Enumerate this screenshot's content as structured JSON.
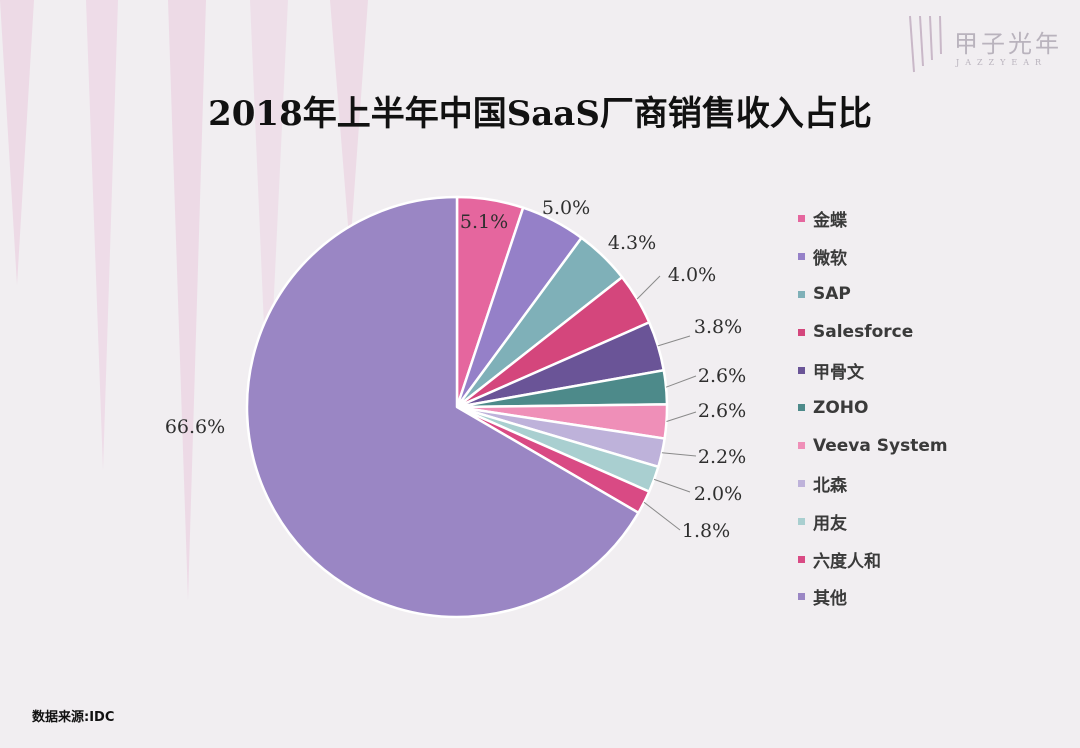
{
  "header": {
    "title": "2018年上半年中国SaaS厂商销售收入占比",
    "logo_name": "甲子光年",
    "logo_sub": "JAZZYEAR"
  },
  "footer": {
    "source": "数据来源:IDC"
  },
  "colors": {
    "background": "#f1eef1",
    "stripes": "#e8d0e0",
    "slice_border": "#ffffff"
  },
  "chart_data": {
    "type": "pie",
    "title": "2018年上半年中国SaaS厂商销售收入占比",
    "start_angle_deg": 0,
    "direction": "clockwise",
    "legend_position": "right",
    "labels": [
      "金蝶",
      "微软",
      "SAP",
      "Salesforce",
      "甲骨文",
      "ZOHO",
      "Veeva System",
      "北森",
      "用友",
      "六度人和",
      "其他"
    ],
    "values": [
      5.1,
      5.0,
      4.3,
      4.0,
      3.8,
      2.6,
      2.6,
      2.2,
      2.0,
      1.8,
      66.6
    ],
    "value_labels": [
      "5.1%",
      "5.0%",
      "4.3%",
      "4.0%",
      "3.8%",
      "2.6%",
      "2.6%",
      "2.2%",
      "2.0%",
      "1.8%",
      "66.6%"
    ],
    "colors": [
      "#e5669e",
      "#9580c8",
      "#7fb0b8",
      "#d4467c",
      "#6a5497",
      "#4d8a8a",
      "#ef8fb8",
      "#beb2da",
      "#a9cfd0",
      "#d94a84",
      "#9a86c4"
    ]
  }
}
